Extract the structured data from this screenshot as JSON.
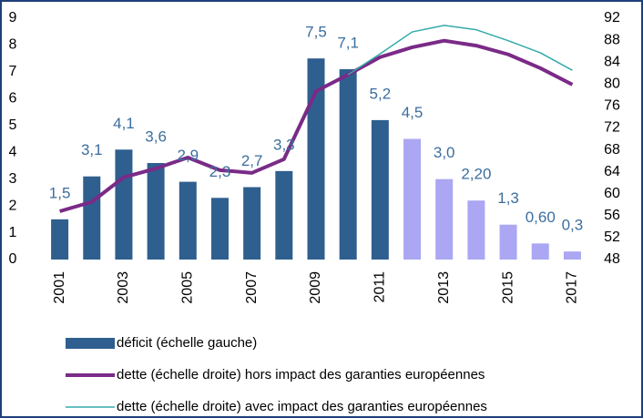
{
  "chart_data": {
    "type": "bar",
    "categories": [
      "2001",
      null,
      "2003",
      null,
      "2005",
      null,
      "2007",
      null,
      "2009",
      null,
      "2011",
      null,
      "2013",
      null,
      "2015",
      null,
      "2017"
    ],
    "ylim": [
      0,
      9
    ],
    "yticks": [
      0,
      1,
      2,
      3,
      4,
      5,
      6,
      7,
      8,
      9
    ],
    "y2lim": [
      48,
      92
    ],
    "y2ticks": [
      48,
      52,
      56,
      60,
      64,
      68,
      72,
      76,
      80,
      84,
      88,
      92
    ],
    "series": [
      {
        "name": "déficit (échelle gauche)",
        "type": "bar",
        "colors": [
          "#2E5F8F",
          "#2E5F8F",
          "#2E5F8F",
          "#2E5F8F",
          "#2E5F8F",
          "#2E5F8F",
          "#2E5F8F",
          "#2E5F8F",
          "#2E5F8F",
          "#2E5F8F",
          "#2E5F8F",
          "#ABA7F2",
          "#ABA7F2",
          "#ABA7F2",
          "#ABA7F2",
          "#ABA7F2",
          "#ABA7F2"
        ],
        "color": "#2E5F8F",
        "values": [
          1.5,
          3.1,
          4.1,
          3.6,
          2.9,
          2.3,
          2.7,
          3.3,
          7.5,
          7.1,
          5.2,
          4.5,
          3.0,
          2.2,
          1.3,
          0.6,
          0.3
        ],
        "value_labels": [
          "1,5",
          "3,1",
          "4,1",
          "3,6",
          "2,9",
          "2,3",
          "2,7",
          "3,3",
          "7,5",
          "7,1",
          "5,2",
          "4,5",
          "3,0",
          "2,20",
          "1,3",
          "0,60",
          "0,3"
        ]
      },
      {
        "name": "dette (échelle droite) hors impact des garanties européennes",
        "type": "line",
        "axis": "y2",
        "color": "#7A2A87",
        "width": 4,
        "values": [
          56.8,
          58.5,
          63,
          64.6,
          66.6,
          64.3,
          63.8,
          66.3,
          78.7,
          81.7,
          84.9,
          86.7,
          87.9,
          87,
          85.4,
          82.9,
          79.9
        ]
      },
      {
        "name": "dette (échelle droite) avec impact des garanties européennes",
        "type": "line",
        "axis": "y2",
        "color": "#33AAAA",
        "width": 1.5,
        "values": [
          null,
          null,
          null,
          null,
          null,
          null,
          null,
          null,
          null,
          81.7,
          85.5,
          89.5,
          90.7,
          89.9,
          87.9,
          85.7,
          82.5
        ]
      }
    ]
  }
}
